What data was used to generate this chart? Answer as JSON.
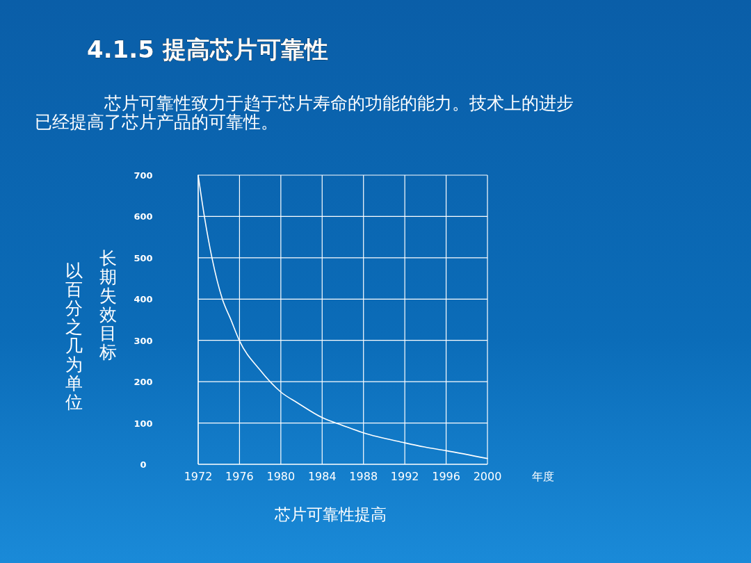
{
  "chart_data": {
    "type": "line",
    "title": "4.1.5  提高芯片可靠性",
    "subtitle": "　　　　芯片可靠性致力于趋于芯片寿命的功能的能力。技术上的进步已经提高了芯片产品的可靠性。",
    "xlabel": "年度",
    "ylabel": "长期失效目标",
    "annotations": [
      "以百分之几为单位",
      "芯片可靠性提高"
    ],
    "series": [
      {
        "color": "#ffffff",
        "x": [
          1972,
          1972.6,
          1973.34,
          1974.34,
          1975.15,
          1976,
          1977.93,
          1980,
          1981.6,
          1984,
          1986,
          1988,
          1992,
          1993.9,
          1996,
          2000
        ],
        "values": [
          700,
          600,
          499,
          400,
          351,
          299,
          230,
          175,
          149,
          113,
          94,
          76,
          52,
          42,
          33,
          14
        ]
      }
    ],
    "xlim": [
      1972,
      2000
    ],
    "xticks": [
      1972,
      1976,
      1980,
      1984,
      1988,
      1992,
      1996,
      2000
    ],
    "ylim": [
      0,
      700
    ],
    "yticks": [
      0,
      100,
      200,
      300,
      400,
      500,
      600,
      700
    ],
    "grid": true,
    "marker": "none",
    "line_style": "solid"
  }
}
